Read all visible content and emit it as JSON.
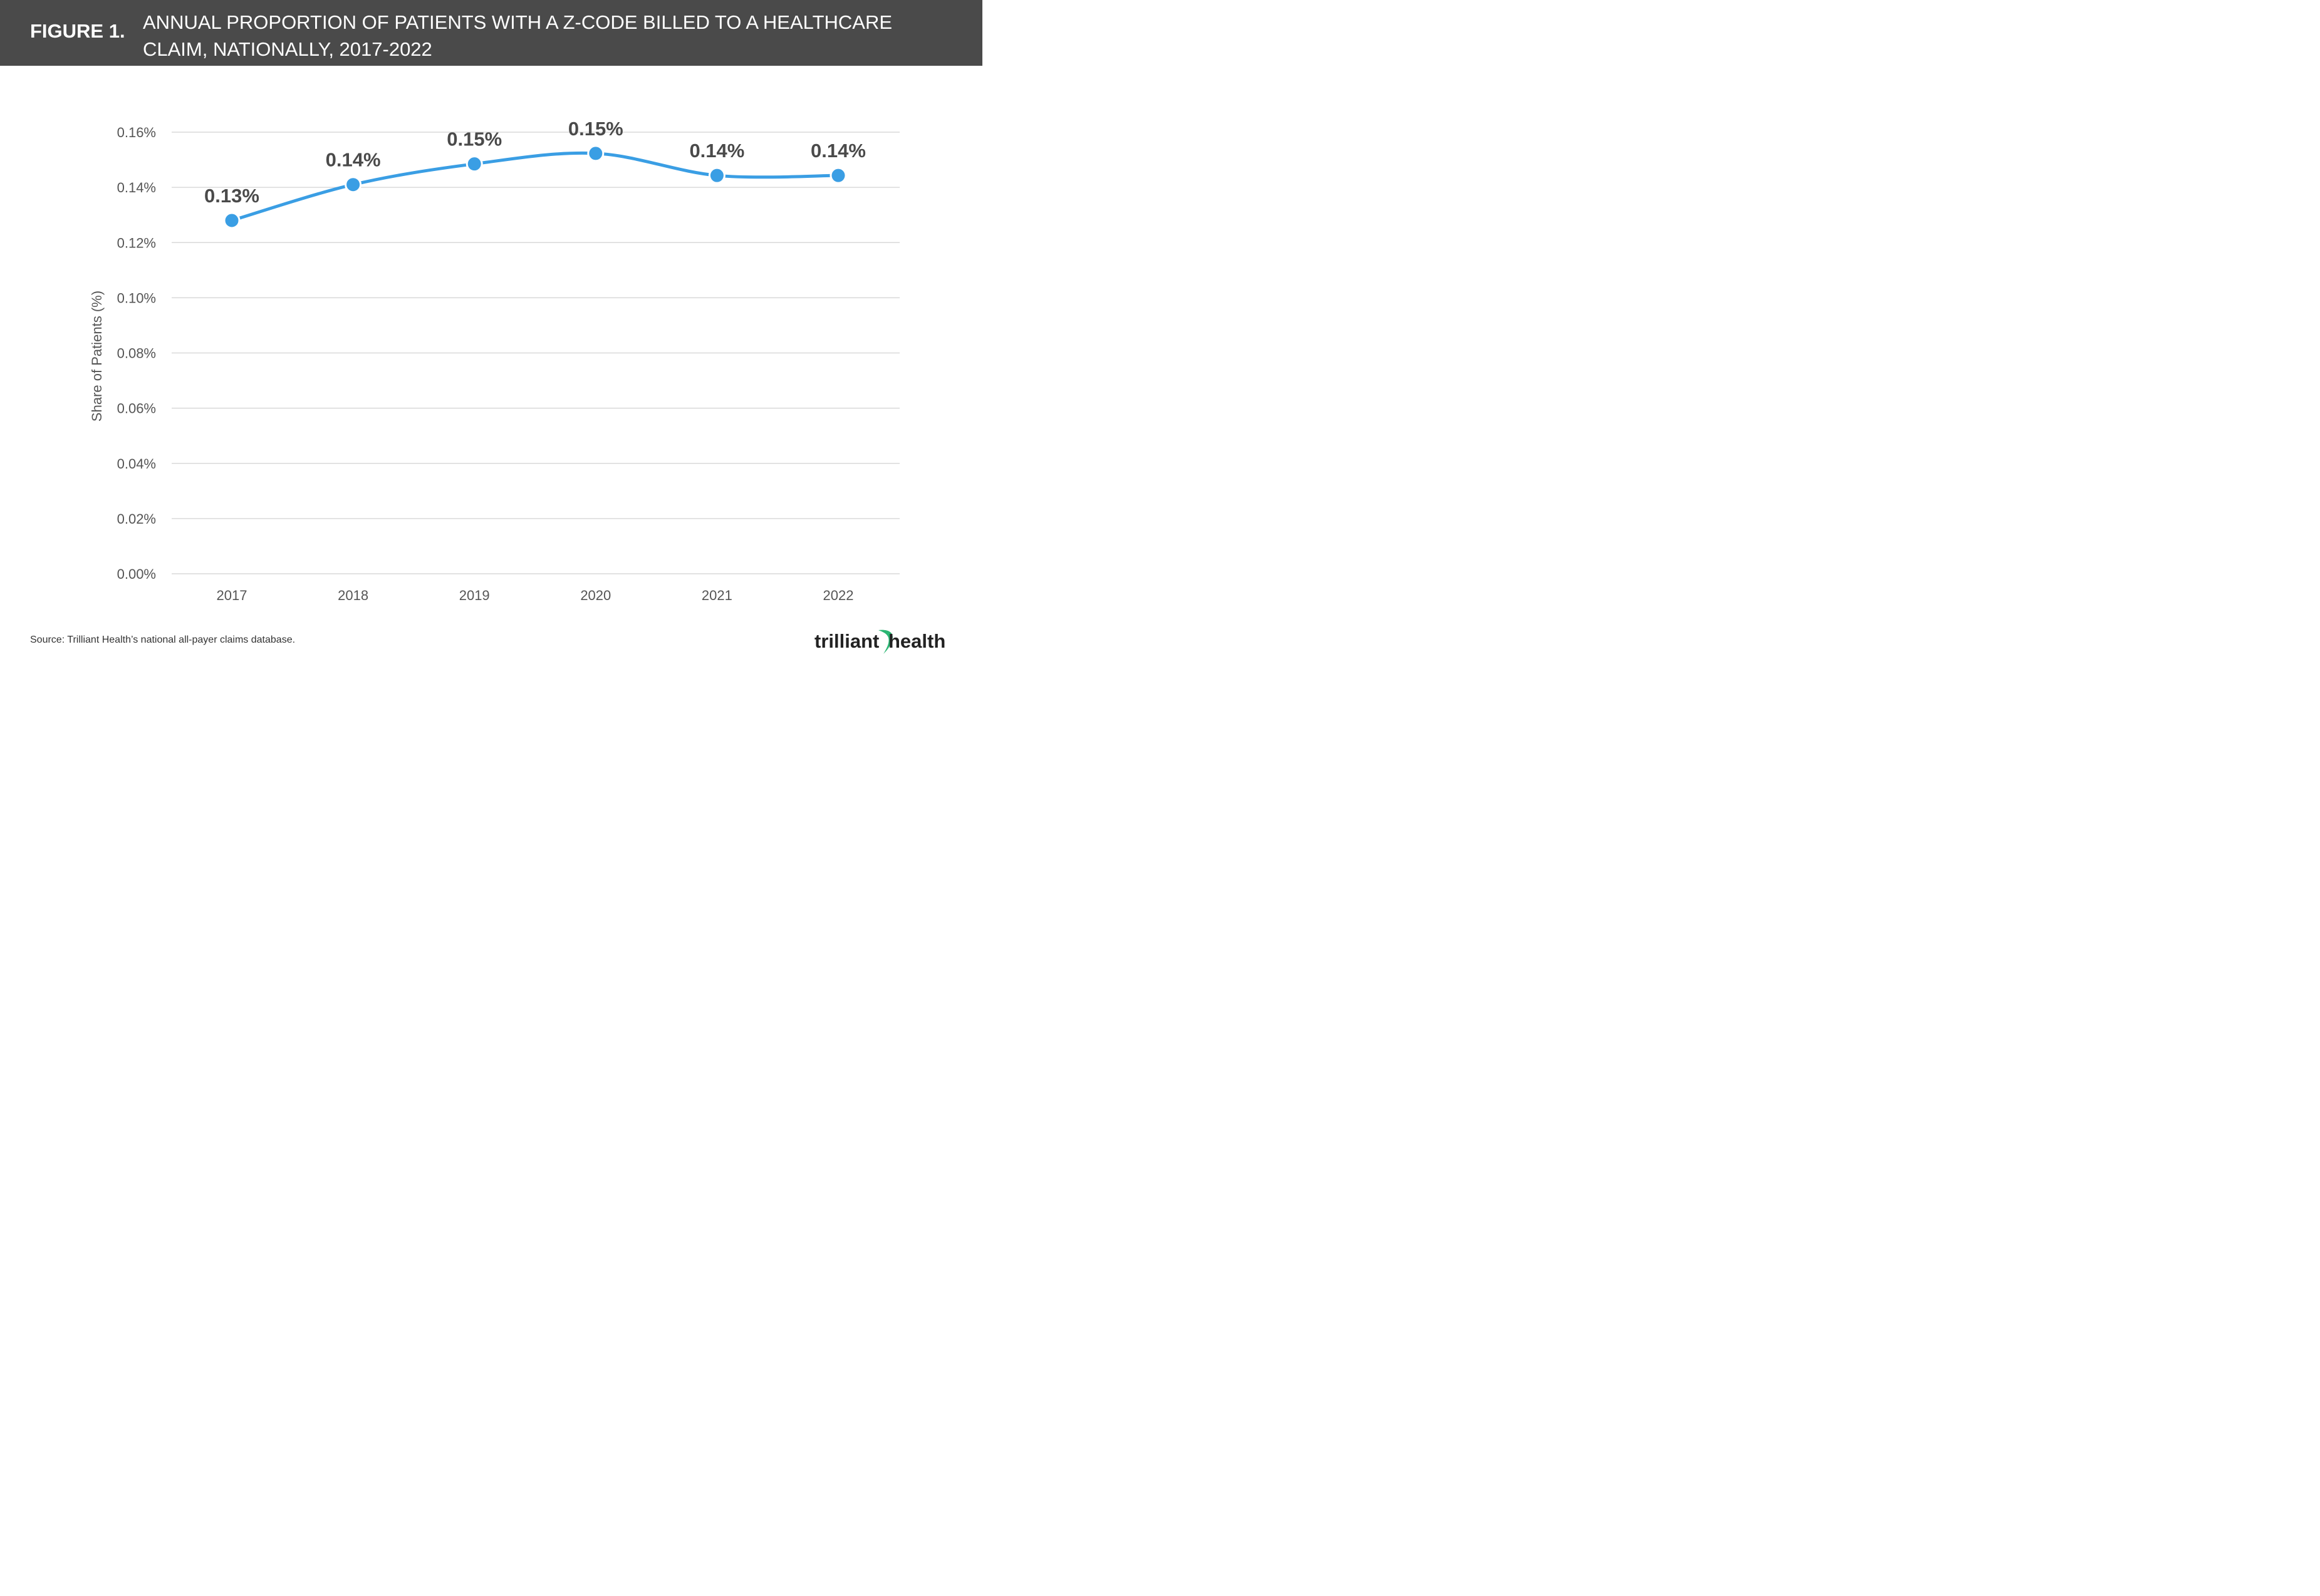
{
  "header": {
    "figure_label": "FIGURE 1.",
    "title_line1": "ANNUAL PROPORTION OF PATIENTS WITH A Z-CODE BILLED TO A HEALTHCARE",
    "title_line2": "CLAIM, NATIONALLY, 2017-2022"
  },
  "chart_data": {
    "type": "line",
    "title": "ANNUAL PROPORTION OF PATIENTS WITH A Z-CODE BILLED TO A HEALTHCARE CLAIM, NATIONALLY, 2017-2022",
    "xlabel": "",
    "ylabel": "Share of Patients (%)",
    "categories": [
      "2017",
      "2018",
      "2019",
      "2020",
      "2021",
      "2022"
    ],
    "series": [
      {
        "values": [
          0.128,
          0.141,
          0.1485,
          0.1523,
          0.1443,
          0.1443
        ],
        "data_labels": [
          "0.13%",
          "0.14%",
          "0.15%",
          "0.15%",
          "0.14%",
          "0.14%"
        ],
        "color": "#3a9ee4"
      }
    ],
    "ylim": [
      0,
      0.16
    ],
    "yticks": [
      0,
      0.02,
      0.04,
      0.06,
      0.08,
      0.1,
      0.12,
      0.14,
      0.16
    ],
    "ytick_labels": [
      "0.00%",
      "0.02%",
      "0.04%",
      "0.06%",
      "0.08%",
      "0.10%",
      "0.12%",
      "0.14%",
      "0.16%"
    ],
    "grid": true,
    "legend": "none"
  },
  "footer": {
    "source": "Source: Trilliant Health’s national all-payer claims database.",
    "logo_word1": "trilliant",
    "logo_word2": "health",
    "logo_accent_color": "#2bb673"
  }
}
